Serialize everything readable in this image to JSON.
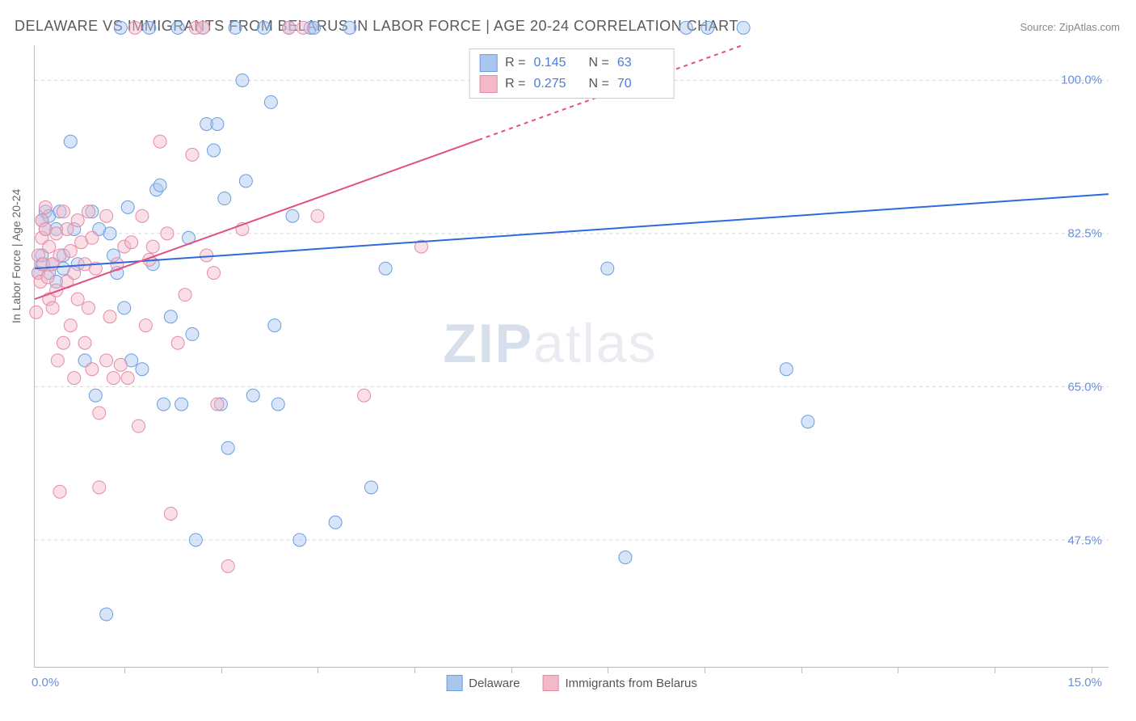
{
  "title": "DELAWARE VS IMMIGRANTS FROM BELARUS IN LABOR FORCE | AGE 20-24 CORRELATION CHART",
  "source": "Source: ZipAtlas.com",
  "ylabel": "In Labor Force | Age 20-24",
  "watermark_a": "ZIP",
  "watermark_b": "atlas",
  "chart": {
    "type": "scatter",
    "xlim": [
      0,
      15
    ],
    "ylim": [
      33,
      104
    ],
    "x_min_label": "0.0%",
    "x_max_label": "15.0%",
    "xticks": [
      1.25,
      2.6,
      3.95,
      5.3,
      6.65,
      8.0,
      9.35,
      10.7,
      12.05,
      13.4,
      14.75
    ],
    "yticks": [
      {
        "v": 100.0,
        "label": "100.0%"
      },
      {
        "v": 82.5,
        "label": "82.5%"
      },
      {
        "v": 65.0,
        "label": "65.0%"
      },
      {
        "v": 47.5,
        "label": "47.5%"
      }
    ],
    "grid_color": "#d8d8d8",
    "background_color": "#ffffff",
    "marker_radius": 8,
    "marker_opacity": 0.45,
    "series": {
      "delaware": {
        "label": "Delaware",
        "fill": "#a9c6ef",
        "stroke": "#6b9de0",
        "r_value": "0.145",
        "n_value": "63",
        "trend": {
          "y_at_xmin": 78.5,
          "y_at_xmax": 87.0,
          "color": "#2d6ae0",
          "width": 2
        },
        "points": [
          [
            0.05,
            78
          ],
          [
            0.1,
            79
          ],
          [
            0.1,
            80
          ],
          [
            0.1,
            84
          ],
          [
            0.15,
            83
          ],
          [
            0.15,
            85
          ],
          [
            0.2,
            78
          ],
          [
            0.2,
            84.5
          ],
          [
            0.25,
            79
          ],
          [
            0.3,
            83
          ],
          [
            0.3,
            77
          ],
          [
            0.35,
            85
          ],
          [
            0.4,
            80
          ],
          [
            0.4,
            78.5
          ],
          [
            0.5,
            93
          ],
          [
            0.55,
            83
          ],
          [
            0.6,
            79
          ],
          [
            0.7,
            68
          ],
          [
            0.8,
            85
          ],
          [
            0.85,
            64
          ],
          [
            0.9,
            83
          ],
          [
            1.0,
            39
          ],
          [
            1.05,
            82.5
          ],
          [
            1.1,
            80
          ],
          [
            1.15,
            78
          ],
          [
            1.2,
            106
          ],
          [
            1.25,
            74
          ],
          [
            1.3,
            85.5
          ],
          [
            1.35,
            68
          ],
          [
            1.5,
            67
          ],
          [
            1.6,
            106
          ],
          [
            1.65,
            79
          ],
          [
            1.7,
            87.5
          ],
          [
            1.75,
            88
          ],
          [
            1.8,
            63
          ],
          [
            1.9,
            73
          ],
          [
            2.0,
            106
          ],
          [
            2.05,
            63
          ],
          [
            2.15,
            82
          ],
          [
            2.2,
            71
          ],
          [
            2.25,
            47.5
          ],
          [
            2.35,
            106
          ],
          [
            2.4,
            95
          ],
          [
            2.5,
            92
          ],
          [
            2.55,
            95
          ],
          [
            2.6,
            63
          ],
          [
            2.65,
            86.5
          ],
          [
            2.7,
            58
          ],
          [
            2.8,
            106
          ],
          [
            2.9,
            100
          ],
          [
            2.95,
            88.5
          ],
          [
            3.05,
            64
          ],
          [
            3.2,
            106
          ],
          [
            3.3,
            97.5
          ],
          [
            3.35,
            72
          ],
          [
            3.4,
            63
          ],
          [
            3.55,
            106
          ],
          [
            3.6,
            84.5
          ],
          [
            3.7,
            47.5
          ],
          [
            3.85,
            106
          ],
          [
            3.9,
            106
          ],
          [
            4.2,
            49.5
          ],
          [
            4.4,
            106
          ],
          [
            4.7,
            53.5
          ],
          [
            4.9,
            78.5
          ],
          [
            8.0,
            78.5
          ],
          [
            8.25,
            45.5
          ],
          [
            9.1,
            106
          ],
          [
            9.4,
            106
          ],
          [
            9.9,
            106
          ],
          [
            10.5,
            67
          ],
          [
            10.8,
            61
          ]
        ]
      },
      "belarus": {
        "label": "Immigrants from Belarus",
        "fill": "#f4b9c9",
        "stroke": "#e68aa5",
        "r_value": "0.275",
        "n_value": "70",
        "trend": {
          "y_at_xmin": 75.0,
          "y_at_xmax": 119.0,
          "color": "#e05080",
          "width": 2,
          "dash_after_x": 6.2
        },
        "points": [
          [
            0.02,
            73.5
          ],
          [
            0.05,
            80
          ],
          [
            0.05,
            78
          ],
          [
            0.08,
            77
          ],
          [
            0.1,
            84
          ],
          [
            0.1,
            82
          ],
          [
            0.12,
            79
          ],
          [
            0.15,
            83
          ],
          [
            0.15,
            85.5
          ],
          [
            0.18,
            77.5
          ],
          [
            0.2,
            81
          ],
          [
            0.2,
            75
          ],
          [
            0.25,
            79
          ],
          [
            0.25,
            74
          ],
          [
            0.3,
            82.5
          ],
          [
            0.3,
            76
          ],
          [
            0.32,
            68
          ],
          [
            0.35,
            80
          ],
          [
            0.35,
            53
          ],
          [
            0.4,
            85
          ],
          [
            0.4,
            70
          ],
          [
            0.45,
            83
          ],
          [
            0.45,
            77
          ],
          [
            0.5,
            80.5
          ],
          [
            0.5,
            72
          ],
          [
            0.55,
            78
          ],
          [
            0.55,
            66
          ],
          [
            0.6,
            84
          ],
          [
            0.6,
            75
          ],
          [
            0.65,
            81.5
          ],
          [
            0.7,
            79
          ],
          [
            0.7,
            70
          ],
          [
            0.75,
            85
          ],
          [
            0.75,
            74
          ],
          [
            0.8,
            82
          ],
          [
            0.8,
            67
          ],
          [
            0.85,
            78.5
          ],
          [
            0.9,
            62
          ],
          [
            0.9,
            53.5
          ],
          [
            1.0,
            68
          ],
          [
            1.0,
            84.5
          ],
          [
            1.05,
            73
          ],
          [
            1.1,
            66
          ],
          [
            1.15,
            79
          ],
          [
            1.2,
            67.5
          ],
          [
            1.25,
            81
          ],
          [
            1.3,
            66
          ],
          [
            1.35,
            81.5
          ],
          [
            1.4,
            106
          ],
          [
            1.45,
            60.5
          ],
          [
            1.5,
            84.5
          ],
          [
            1.55,
            72
          ],
          [
            1.6,
            79.5
          ],
          [
            1.65,
            81
          ],
          [
            1.75,
            93
          ],
          [
            1.85,
            82.5
          ],
          [
            1.9,
            50.5
          ],
          [
            2.0,
            70
          ],
          [
            2.1,
            75.5
          ],
          [
            2.2,
            91.5
          ],
          [
            2.25,
            106
          ],
          [
            2.35,
            106
          ],
          [
            2.4,
            80
          ],
          [
            2.5,
            78
          ],
          [
            2.55,
            63
          ],
          [
            2.7,
            44.5
          ],
          [
            2.9,
            83
          ],
          [
            3.55,
            106
          ],
          [
            3.75,
            106
          ],
          [
            3.95,
            84.5
          ],
          [
            4.6,
            64
          ],
          [
            5.4,
            81
          ]
        ]
      }
    }
  },
  "colors": {
    "title": "#5a5a5a",
    "axis_label": "#6a8fd8",
    "corr_value": "#4a7be0"
  }
}
